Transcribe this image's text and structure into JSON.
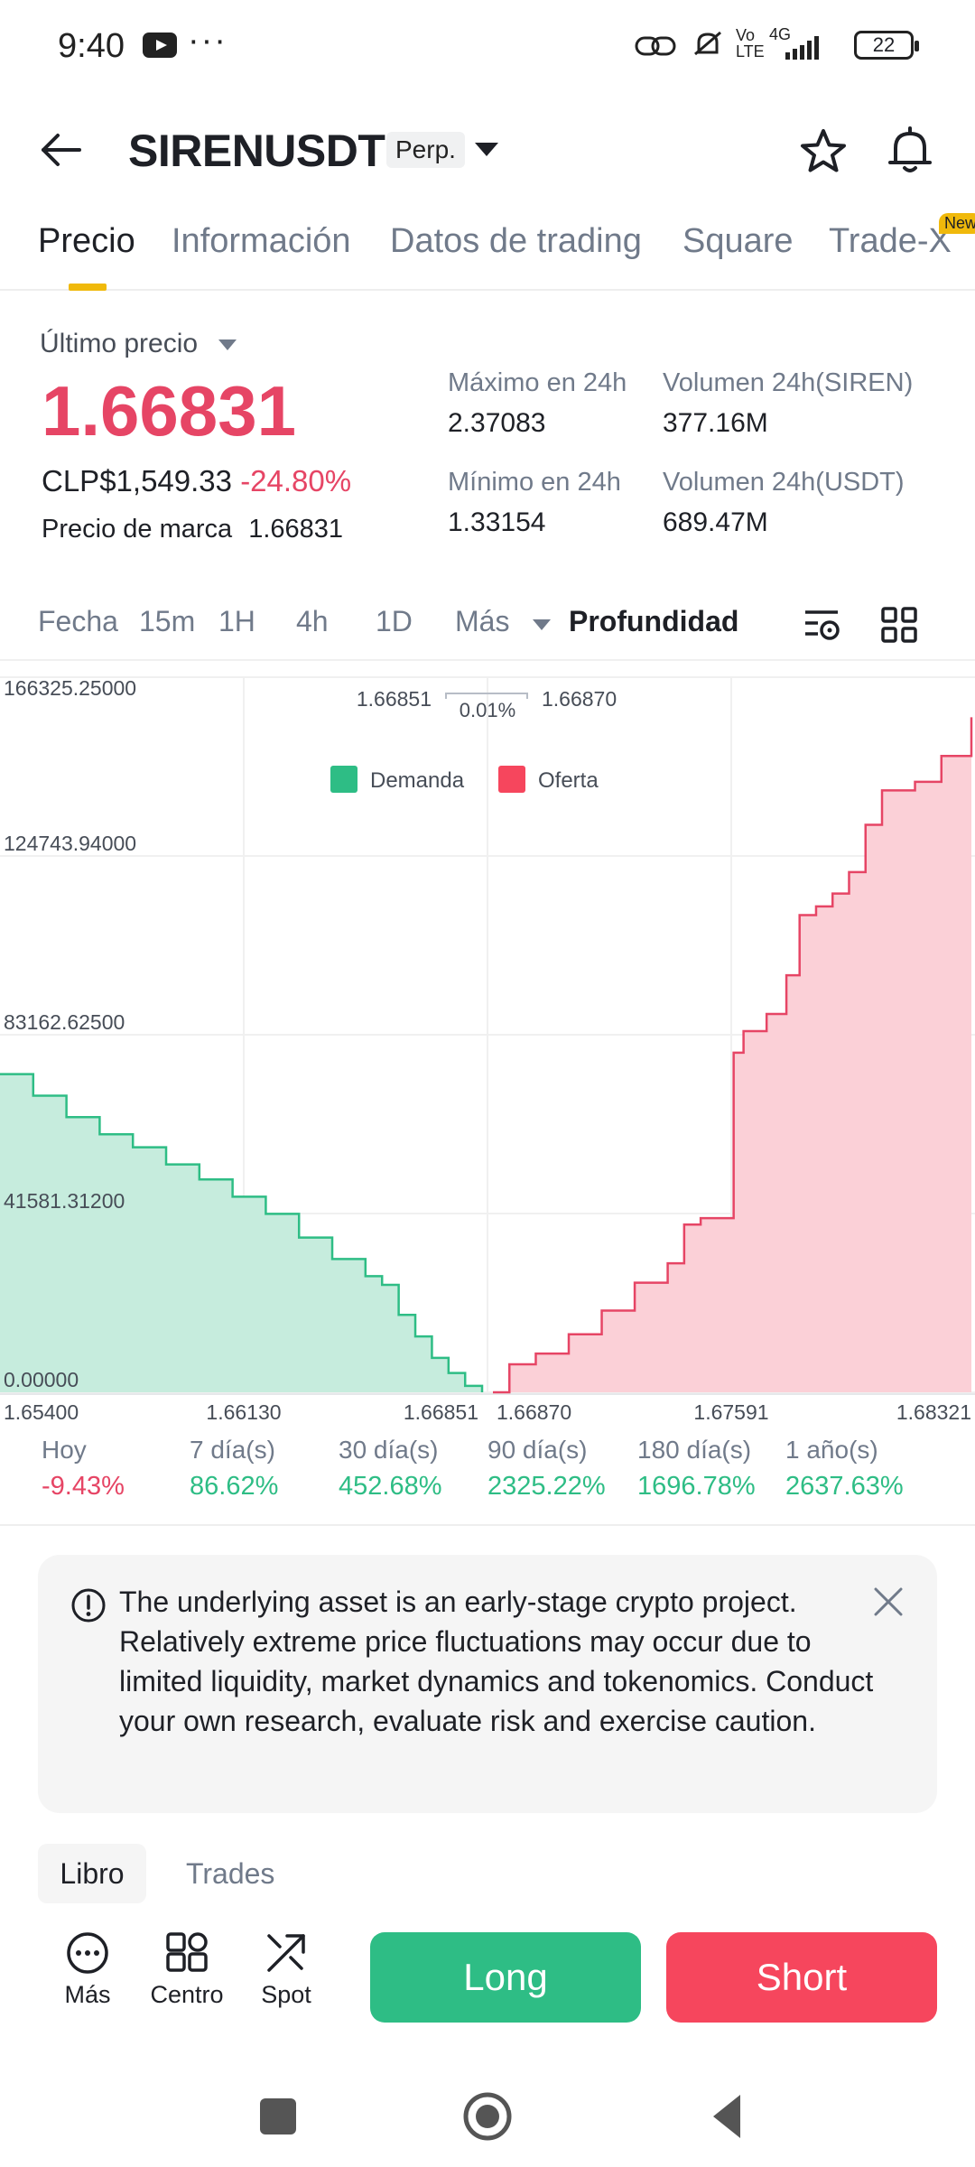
{
  "status_bar": {
    "time": "9:40",
    "dots": "···",
    "network_vo": "Vo",
    "network_lte": "LTE",
    "network_4g": "4G",
    "battery": "22"
  },
  "header": {
    "title": "SIRENUSDT",
    "badge": "Perp."
  },
  "tabs": [
    {
      "label": "Precio",
      "active": true
    },
    {
      "label": "Información"
    },
    {
      "label": "Datos de trading"
    },
    {
      "label": "Square"
    },
    {
      "label": "Trade-X",
      "badge": "New"
    }
  ],
  "price": {
    "last_label": "Último precio",
    "last": "1.66831",
    "clp": "CLP$1,549.33",
    "change": "-24.80%",
    "mark_label": "Precio de marca",
    "mark": "1.66831"
  },
  "stats": {
    "high_label": "Máximo en 24h",
    "high": "2.37083",
    "low_label": "Mínimo en 24h",
    "low": "1.33154",
    "vol_siren_label": "Volumen 24h(SIREN)",
    "vol_siren": "377.16M",
    "vol_usdt_label": "Volumen 24h(USDT)",
    "vol_usdt": "689.47M"
  },
  "intervals": {
    "fecha": "Fecha",
    "m15": "15m",
    "h1": "1H",
    "h4": "4h",
    "d1": "1D",
    "mas": "Más",
    "depth": "Profundidad"
  },
  "chart_data": {
    "type": "area",
    "y_ticks": [
      "166325.25000",
      "124743.94000",
      "83162.62500",
      "41581.31200",
      "0.00000"
    ],
    "ylim": [
      0,
      166325.25
    ],
    "x_ticks": [
      "1.65400",
      "1.66130",
      "1.66851",
      "1.66870",
      "1.67591",
      "1.68321"
    ],
    "spread": {
      "bid": "1.66851",
      "pct": "0.01%",
      "ask": "1.66870"
    },
    "legend": [
      {
        "name": "Demanda",
        "color": "#2ebd85"
      },
      {
        "name": "Oferta",
        "color": "#f6465d"
      }
    ],
    "legend_placement": "top-center",
    "series": [
      {
        "name": "Demanda",
        "color": "#2ebd85",
        "x": [
          1.654,
          1.655,
          1.656,
          1.657,
          1.658,
          1.659,
          1.66,
          1.661,
          1.662,
          1.663,
          1.664,
          1.665,
          1.6655,
          1.666,
          1.6665,
          1.667,
          1.6675,
          1.668,
          1.66851
        ],
        "y": [
          74000,
          69000,
          64000,
          60000,
          57000,
          53000,
          49500,
          45500,
          41500,
          36000,
          31000,
          27000,
          25000,
          18000,
          13000,
          8000,
          4500,
          1500,
          0
        ]
      },
      {
        "name": "Oferta",
        "color": "#f6465d",
        "x": [
          1.6687,
          1.6692,
          1.67,
          1.671,
          1.672,
          1.673,
          1.674,
          1.6745,
          1.675,
          1.676,
          1.6763,
          1.677,
          1.6776,
          1.678,
          1.6785,
          1.679,
          1.6795,
          1.68,
          1.6805,
          1.6815,
          1.6823,
          1.68321
        ],
        "y": [
          0,
          6500,
          9000,
          13500,
          19000,
          25500,
          30000,
          39000,
          40500,
          79000,
          84000,
          88000,
          97000,
          111000,
          113000,
          116000,
          121000,
          132000,
          140000,
          142000,
          148000,
          157000
        ]
      }
    ]
  },
  "changes": [
    {
      "label": "Hoy",
      "value": "-9.43%",
      "dir": "neg"
    },
    {
      "label": "7 día(s)",
      "value": "86.62%",
      "dir": "pos"
    },
    {
      "label": "30 día(s)",
      "value": "452.68%",
      "dir": "pos"
    },
    {
      "label": "90 día(s)",
      "value": "2325.22%",
      "dir": "pos"
    },
    {
      "label": "180 día(s)",
      "value": "1696.78%",
      "dir": "pos"
    },
    {
      "label": "1 año(s)",
      "value": "2637.63%",
      "dir": "pos"
    }
  ],
  "notice": {
    "text": "The underlying asset is an early-stage crypto project. Relatively extreme price fluctuations may occur due to limited liquidity, market dynamics and tokenomics. Conduct your own research, evaluate risk and exercise caution."
  },
  "book_tabs": {
    "libro": "Libro",
    "trades": "Trades"
  },
  "bottom_bar": {
    "mas": "Más",
    "centro": "Centro",
    "spot": "Spot",
    "long": "Long",
    "short": "Short"
  }
}
